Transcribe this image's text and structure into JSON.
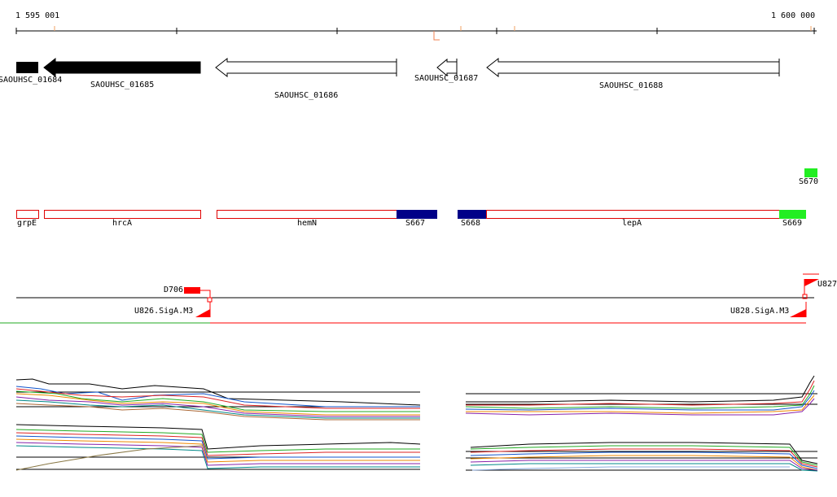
{
  "coordinates": {
    "start": "1 595 001",
    "end": "1 600 000"
  },
  "genes": [
    {
      "label": "SAOUHSC_01684",
      "strand": "reverse",
      "fill": "#000000"
    },
    {
      "label": "SAOUHSC_01685",
      "strand": "reverse",
      "fill": "#000000"
    },
    {
      "label": "SAOUHSC_01686",
      "strand": "reverse",
      "fill": "#ffffff"
    },
    {
      "label": "SAOUHSC_01687",
      "strand": "reverse",
      "fill": "#ffffff"
    },
    {
      "label": "SAOUHSC_01688",
      "strand": "reverse",
      "fill": "#ffffff"
    }
  ],
  "segments": {
    "upper": [
      {
        "label": "S670",
        "color": "#22ee22"
      }
    ],
    "lower": [
      {
        "label": "grpE"
      },
      {
        "label": "hrcA"
      },
      {
        "label": "hemN"
      },
      {
        "label": "S667",
        "color": "#000088"
      },
      {
        "label": "S668",
        "color": "#000088"
      },
      {
        "label": "lepA"
      },
      {
        "label": "S669",
        "color": "#22ee22"
      }
    ]
  },
  "promoters": [
    {
      "label": "D706",
      "color": "#ff0000"
    },
    {
      "label": "U826.SigA.M3",
      "color": "#ff0000"
    },
    {
      "label": "U828.SigA.M3",
      "color": "#ff0000"
    },
    {
      "label": "U827",
      "color": "#ff0000"
    }
  ],
  "colors": {
    "feature_outline": "#e00000",
    "transcript": "#ff0000",
    "transcript_upstream": "#22aa22",
    "axis": "#000000"
  }
}
